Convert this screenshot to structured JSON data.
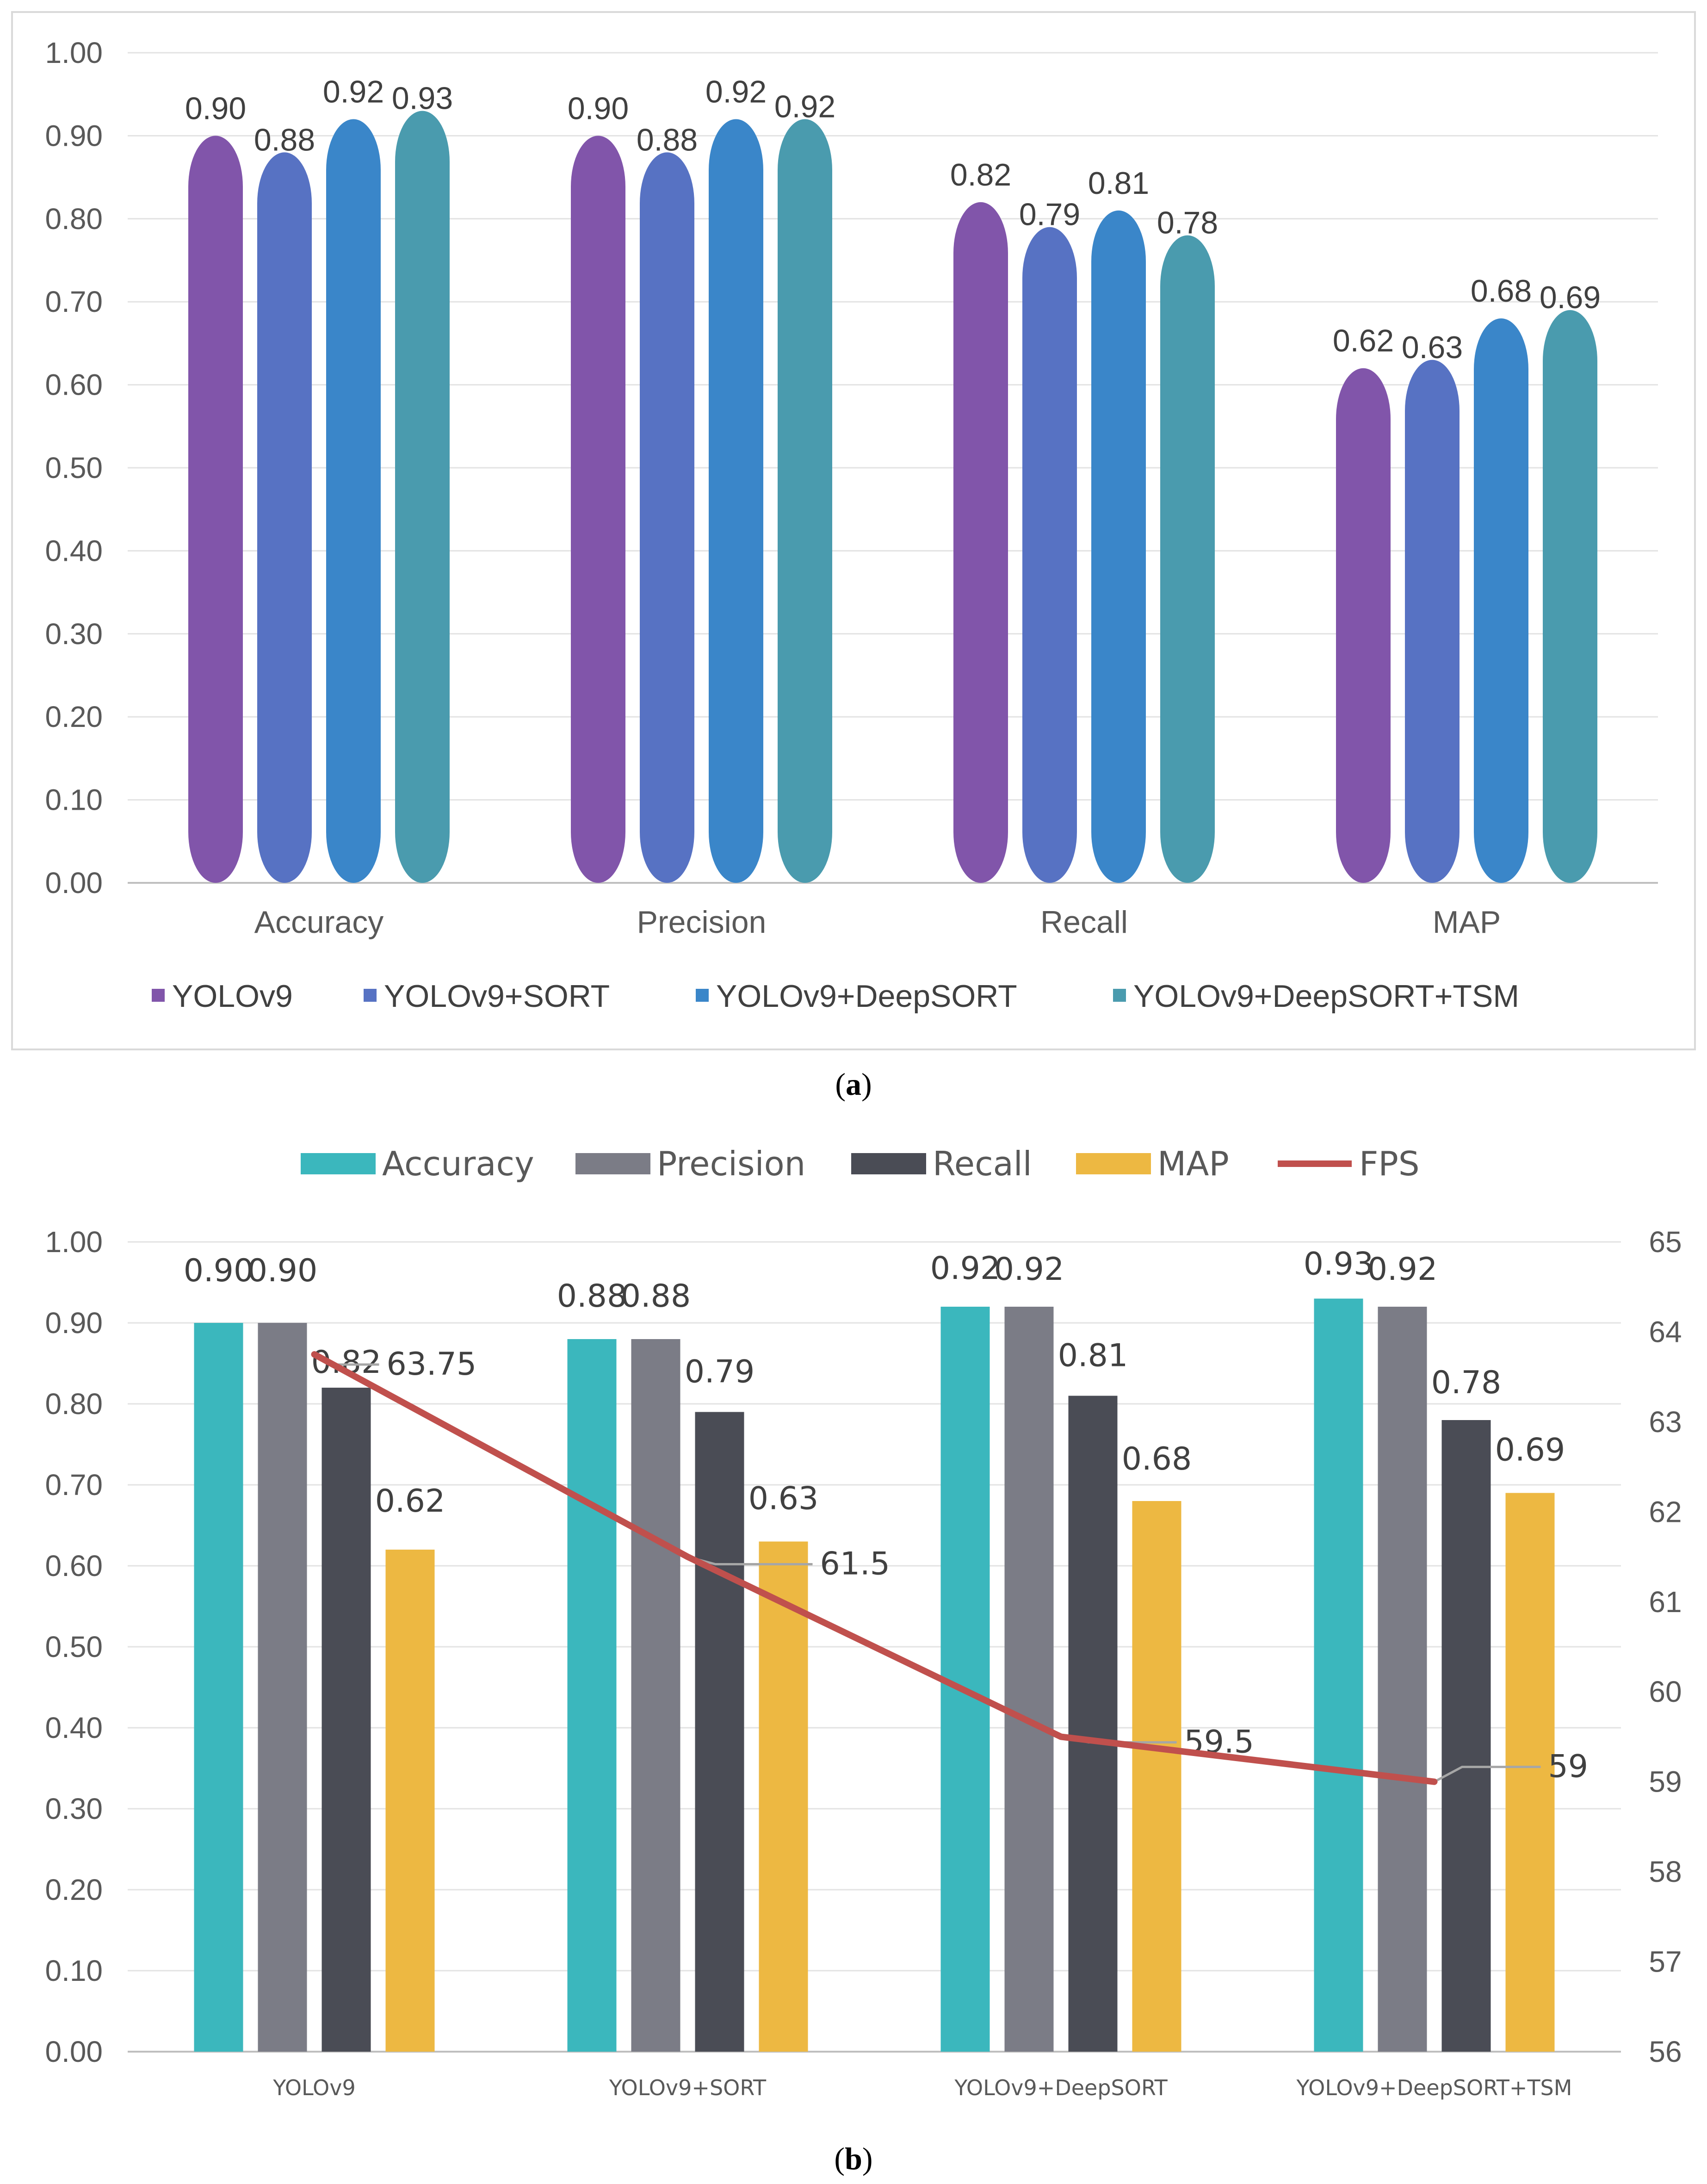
{
  "chart_data": [
    {
      "id": "a",
      "type": "bar",
      "caption": "(a)",
      "caption_letter": "a",
      "categories": [
        "Accuracy",
        "Precision",
        "Recall",
        "MAP"
      ],
      "series": [
        {
          "name": "YOLOv9",
          "color": "#8155AA",
          "values": [
            0.9,
            0.9,
            0.82,
            0.62
          ],
          "labels": [
            "0.90",
            "0.90",
            "0.82",
            "0.62"
          ]
        },
        {
          "name": "YOLOv9+SORT",
          "color": "#5772C3",
          "values": [
            0.88,
            0.88,
            0.79,
            0.63
          ],
          "labels": [
            "0.88",
            "0.88",
            "0.79",
            "0.63"
          ]
        },
        {
          "name": "YOLOv9+DeepSORT",
          "color": "#3A86C9",
          "values": [
            0.92,
            0.92,
            0.81,
            0.68
          ],
          "labels": [
            "0.92",
            "0.92",
            "0.81",
            "0.68"
          ]
        },
        {
          "name": "YOLOv9+DeepSORT+TSM",
          "color": "#4A9BAE",
          "values": [
            0.93,
            0.92,
            0.78,
            0.69
          ],
          "labels": [
            "0.93",
            "0.92",
            "0.78",
            "0.69"
          ]
        }
      ],
      "ylim": [
        0,
        1.0
      ],
      "yticks": [
        "0.00",
        "0.10",
        "0.20",
        "0.30",
        "0.40",
        "0.50",
        "0.60",
        "0.70",
        "0.80",
        "0.90",
        "1.00"
      ],
      "legend_position": "bottom",
      "grid": true
    },
    {
      "id": "b",
      "type": "bar",
      "caption": "(b)",
      "caption_letter": "b",
      "categories": [
        "YOLOv9",
        "YOLOv9+SORT",
        "YOLOv9+DeepSORT",
        "YOLOv9+DeepSORT+TSM"
      ],
      "series": [
        {
          "name": "Accuracy",
          "color": "#3BB7BD",
          "values": [
            0.9,
            0.88,
            0.92,
            0.93
          ],
          "labels": [
            "0.90",
            "0.88",
            "0.92",
            "0.93"
          ]
        },
        {
          "name": "Precision",
          "color": "#7B7C86",
          "values": [
            0.9,
            0.88,
            0.92,
            0.92
          ],
          "labels": [
            "0.90",
            "0.88",
            "0.92",
            "0.92"
          ]
        },
        {
          "name": "Recall",
          "color": "#4A4C55",
          "values": [
            0.82,
            0.79,
            0.81,
            0.78
          ],
          "labels": [
            "0.82",
            "0.79",
            "0.81",
            "0.78"
          ]
        },
        {
          "name": "MAP",
          "color": "#EDB842",
          "values": [
            0.62,
            0.63,
            0.68,
            0.69
          ],
          "labels": [
            "0.62",
            "0.63",
            "0.68",
            "0.69"
          ]
        }
      ],
      "line_series": {
        "name": "FPS",
        "color": "#C0504D",
        "values": [
          63.75,
          61.5,
          59.5,
          59
        ],
        "labels": [
          "63.75",
          "61.5",
          "59.5",
          "59"
        ]
      },
      "ylim": [
        0,
        1.0
      ],
      "y2lim": [
        56,
        65
      ],
      "yticks": [
        "0.00",
        "0.10",
        "0.20",
        "0.30",
        "0.40",
        "0.50",
        "0.60",
        "0.70",
        "0.80",
        "0.90",
        "1.00"
      ],
      "y2ticks": [
        "56",
        "57",
        "58",
        "59",
        "60",
        "61",
        "62",
        "63",
        "64",
        "65"
      ],
      "legend_position": "top",
      "grid": true
    }
  ]
}
